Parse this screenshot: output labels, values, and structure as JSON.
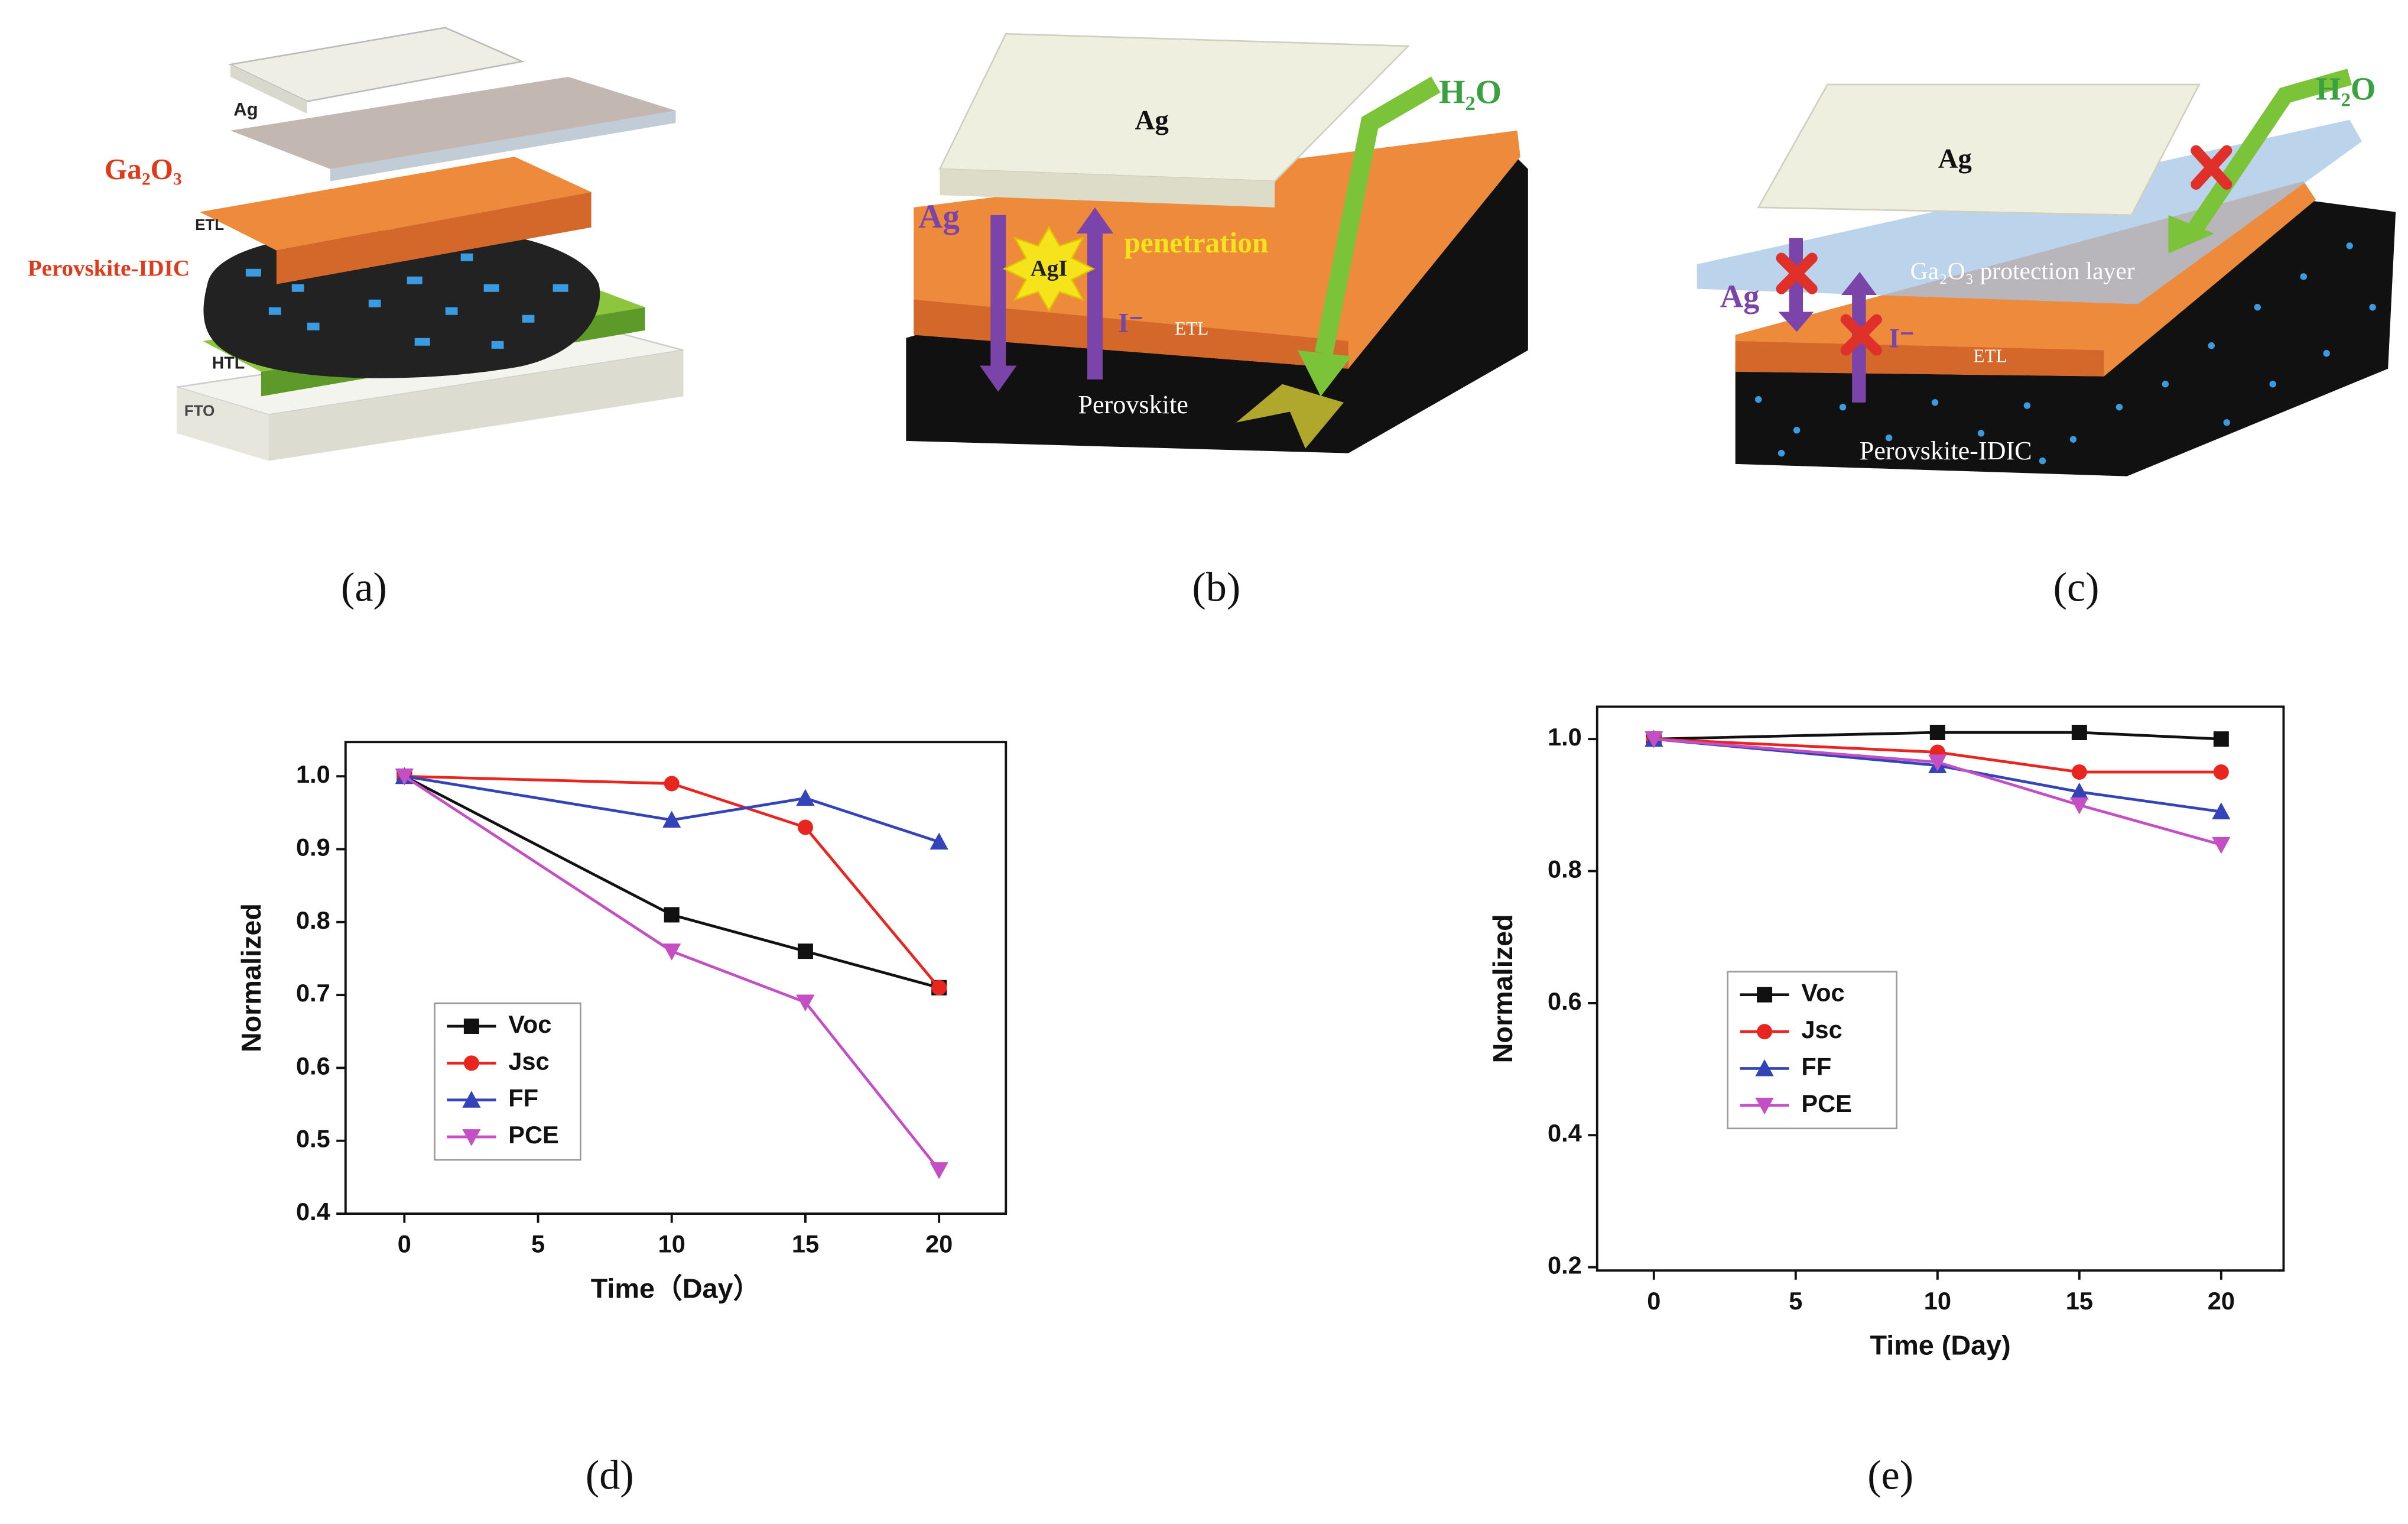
{
  "panel_labels": [
    "(a)",
    "(b)",
    "(c)",
    "(d)",
    "(e)"
  ],
  "diagrams": [
    {
      "texts": [
        "Ag",
        "Ga₂O₃",
        "ETL",
        "Perovskite-IDIC",
        "HTL",
        "FTO"
      ]
    },
    {
      "texts": [
        "Ag",
        "H₂O",
        "Ag",
        "AgI",
        "penetration",
        "I⁻",
        "ETL",
        "Perovskite"
      ]
    },
    {
      "texts": [
        "Ag",
        "H₂O",
        "Ga₂O₃ protection layer",
        "Ag",
        "I⁻",
        "ETL",
        "Perovskite-IDIC"
      ]
    }
  ],
  "chart_data": [
    {
      "type": "line",
      "xlabel": "Time（Day）",
      "ylabel": "Normalized",
      "x": [
        0,
        10,
        15,
        20
      ],
      "series": [
        {
          "name": "Voc",
          "color": "#111111",
          "marker": "square",
          "values": [
            1.0,
            0.81,
            0.76,
            0.71
          ]
        },
        {
          "name": "Jsc",
          "color": "#e8251f",
          "marker": "circle",
          "values": [
            1.0,
            0.99,
            0.93,
            0.71
          ]
        },
        {
          "name": "FF",
          "color": "#3344b8",
          "marker": "triangle-up",
          "values": [
            1.0,
            0.94,
            0.97,
            0.91
          ]
        },
        {
          "name": "PCE",
          "color": "#c44fc4",
          "marker": "triangle-down",
          "values": [
            1.0,
            0.76,
            0.69,
            0.46
          ]
        }
      ],
      "xlim": [
        -2.2,
        22.5
      ],
      "xticks": [
        0,
        5,
        10,
        15,
        20
      ],
      "ylim": [
        0.4,
        1.047
      ],
      "yticks": [
        0.4,
        0.5,
        0.6,
        0.7,
        0.8,
        0.9,
        {
          "value": 1,
          "label": "1.0"
        }
      ],
      "legend": "lower left"
    },
    {
      "type": "line",
      "xlabel": "Time (Day)",
      "ylabel": "Normalized",
      "x": [
        0,
        10,
        15,
        20
      ],
      "series": [
        {
          "name": "Voc",
          "color": "#111111",
          "marker": "square",
          "values": [
            1.0,
            1.01,
            1.01,
            1.0
          ]
        },
        {
          "name": "Jsc",
          "color": "#e8251f",
          "marker": "circle",
          "values": [
            1.0,
            0.98,
            0.95,
            0.95
          ]
        },
        {
          "name": "FF",
          "color": "#3344b8",
          "marker": "triangle-up",
          "values": [
            1.0,
            0.96,
            0.92,
            0.89
          ]
        },
        {
          "name": "PCE",
          "color": "#c44fc4",
          "marker": "triangle-down",
          "values": [
            1.0,
            0.965,
            0.9,
            0.84
          ]
        }
      ],
      "xlim": [
        -2.0,
        22.2
      ],
      "xticks": [
        0,
        5,
        10,
        15,
        20
      ],
      "ylim": [
        0.195,
        1.049
      ],
      "yticks": [
        0.2,
        0.4,
        0.6,
        0.8,
        {
          "value": 1,
          "label": "1.0"
        }
      ],
      "legend": "center left"
    }
  ]
}
